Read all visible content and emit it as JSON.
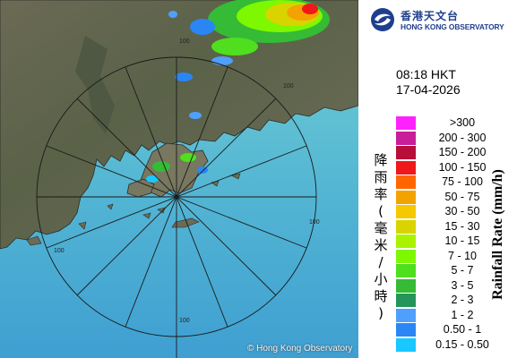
{
  "map": {
    "range_ring_labels": [
      "100",
      "100",
      "100",
      "100",
      "100"
    ],
    "copyright": "© Hong Kong Observatory"
  },
  "header": {
    "logo_chinese": "香港天文台",
    "logo_english": "HONG KONG OBSERVATORY"
  },
  "timestamp": {
    "time": "08:18 HKT",
    "date": "17-04-2026"
  },
  "legend": {
    "title_chinese": "降雨率(毫米/小時)",
    "title_english": "Rainfall Rate (mm/h)",
    "items": [
      {
        "label": ">300",
        "color": "#ff22ff"
      },
      {
        "label": "200 - 300",
        "color": "#c81e9a"
      },
      {
        "label": "150 - 200",
        "color": "#b80f3a"
      },
      {
        "label": "100 - 150",
        "color": "#f01818"
      },
      {
        "label": "75 - 100",
        "color": "#ff6600"
      },
      {
        "label": "50 - 75",
        "color": "#f3a300"
      },
      {
        "label": "30 - 50",
        "color": "#f6c800"
      },
      {
        "label": "15 - 30",
        "color": "#d9d400"
      },
      {
        "label": "10 - 15",
        "color": "#aaf300"
      },
      {
        "label": "7 - 10",
        "color": "#7ef800"
      },
      {
        "label": "5 - 7",
        "color": "#4fdf1f"
      },
      {
        "label": "3 - 5",
        "color": "#35bb35"
      },
      {
        "label": "2 - 3",
        "color": "#25955a"
      },
      {
        "label": "1 - 2",
        "color": "#4f9fff"
      },
      {
        "label": "0.50 - 1",
        "color": "#2a86f4"
      },
      {
        "label": "0.15 - 0.50",
        "color": "#18c8ff"
      }
    ]
  }
}
